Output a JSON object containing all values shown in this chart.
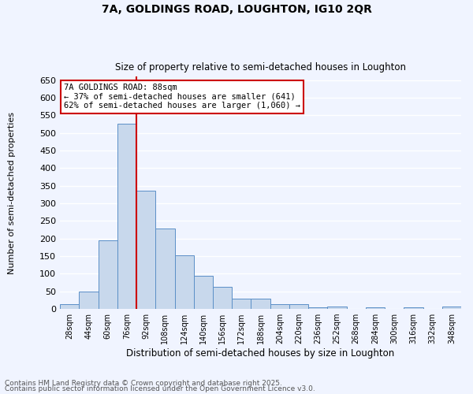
{
  "title1": "7A, GOLDINGS ROAD, LOUGHTON, IG10 2QR",
  "title2": "Size of property relative to semi-detached houses in Loughton",
  "xlabel": "Distribution of semi-detached houses by size in Loughton",
  "ylabel": "Number of semi-detached properties",
  "bar_color": "#c8d8ec",
  "bar_edge_color": "#5b8fc7",
  "background_color": "#f0f4ff",
  "grid_color": "#ffffff",
  "annotation_box_color": "#cc0000",
  "vline_color": "#cc0000",
  "bins": [
    "28sqm",
    "44sqm",
    "60sqm",
    "76sqm",
    "92sqm",
    "108sqm",
    "124sqm",
    "140sqm",
    "156sqm",
    "172sqm",
    "188sqm",
    "204sqm",
    "220sqm",
    "236sqm",
    "252sqm",
    "268sqm",
    "284sqm",
    "300sqm",
    "316sqm",
    "332sqm",
    "348sqm"
  ],
  "values": [
    13,
    50,
    195,
    527,
    335,
    228,
    153,
    95,
    63,
    30,
    30,
    13,
    14,
    5,
    8,
    0,
    5,
    0,
    5,
    0,
    7
  ],
  "property_label": "7A GOLDINGS ROAD: 88sqm",
  "pct_smaller": 37,
  "n_smaller": 641,
  "pct_larger": 62,
  "n_larger": 1060,
  "vline_x_index": 4,
  "ylim": [
    0,
    660
  ],
  "yticks": [
    0,
    50,
    100,
    150,
    200,
    250,
    300,
    350,
    400,
    450,
    500,
    550,
    600,
    650
  ],
  "footnote1": "Contains HM Land Registry data © Crown copyright and database right 2025.",
  "footnote2": "Contains public sector information licensed under the Open Government Licence v3.0."
}
